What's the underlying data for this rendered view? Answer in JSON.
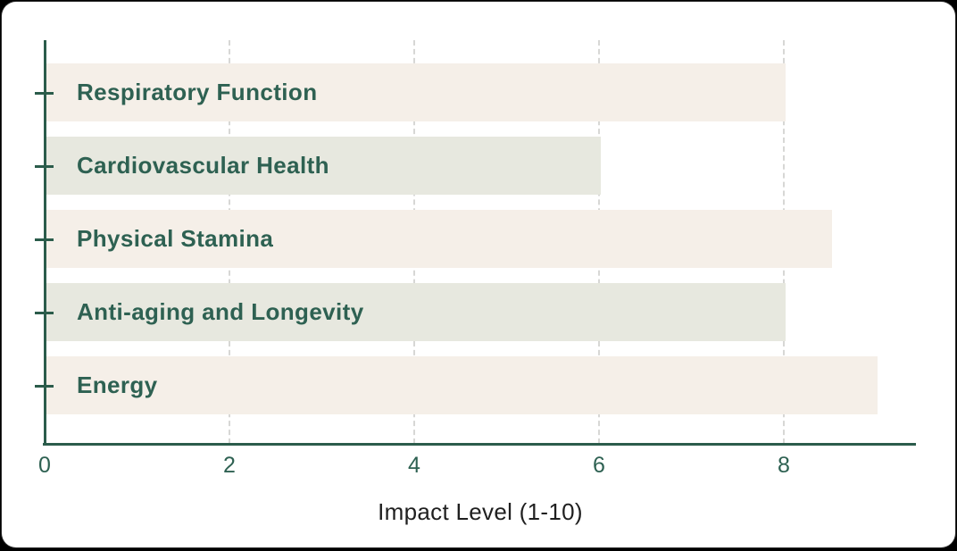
{
  "chart_data": {
    "type": "bar",
    "orientation": "horizontal",
    "title": "",
    "categories": [
      "Respiratory Function",
      "Cardiovascular Health",
      "Physical Stamina",
      "Anti-aging and Longevity",
      "Energy"
    ],
    "values": [
      8,
      6,
      8.5,
      8,
      9
    ],
    "xlabel": "Impact Level (1-10)",
    "ylabel": "",
    "x_ticks": [
      0,
      2,
      4,
      6,
      8
    ],
    "xlim": [
      0,
      9.43
    ],
    "grid": "vertical-dashed",
    "legend": "none",
    "colors": {
      "bar_alternate": [
        "#f5efe8",
        "#e7e8df"
      ],
      "bar_label": "#2e6152",
      "axis": "#2b5c4b",
      "tick_label": "#2e6152",
      "xlabel_text": "#1f1f1f",
      "gridline": "#d7d7d5",
      "card_background": "#ffffff",
      "page_background": "#000000"
    }
  }
}
